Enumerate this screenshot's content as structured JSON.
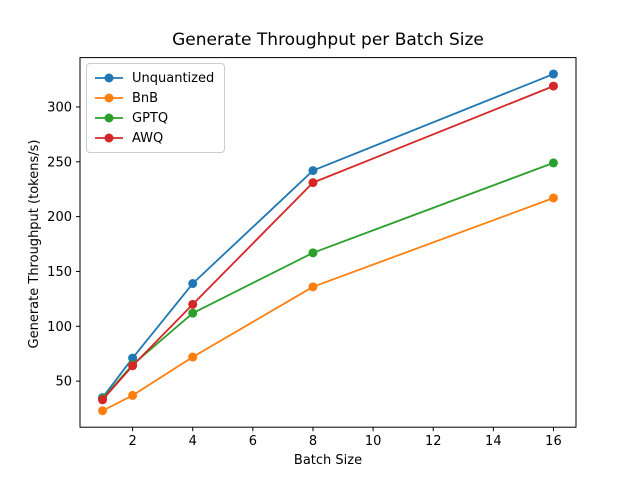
{
  "chart_data": {
    "type": "line",
    "title": "Generate Throughput per Batch Size",
    "xlabel": "Batch Size",
    "ylabel": "Generate Throughput (tokens/s)",
    "x": [
      1,
      2,
      4,
      8,
      16
    ],
    "series": [
      {
        "name": "Unquantized",
        "color": "#1f77b4",
        "values": [
          35,
          71,
          139,
          242,
          330
        ]
      },
      {
        "name": "BnB",
        "color": "#ff7f0e",
        "values": [
          23,
          37,
          72,
          136,
          217
        ]
      },
      {
        "name": "GPTQ",
        "color": "#2ca02c",
        "values": [
          34,
          65,
          112,
          167,
          249
        ]
      },
      {
        "name": "AWQ",
        "color": "#d62728",
        "values": [
          33,
          64,
          120,
          231,
          319
        ]
      }
    ],
    "xticks": [
      2,
      4,
      6,
      8,
      10,
      12,
      14,
      16
    ],
    "yticks": [
      50,
      100,
      150,
      200,
      250,
      300
    ],
    "xlim": [
      0.25,
      16.75
    ],
    "ylim": [
      8,
      345
    ],
    "grid": false,
    "legend_position": "upper left",
    "marker": "circle",
    "background_color": "#ffffff",
    "spine_color": "#000000"
  }
}
